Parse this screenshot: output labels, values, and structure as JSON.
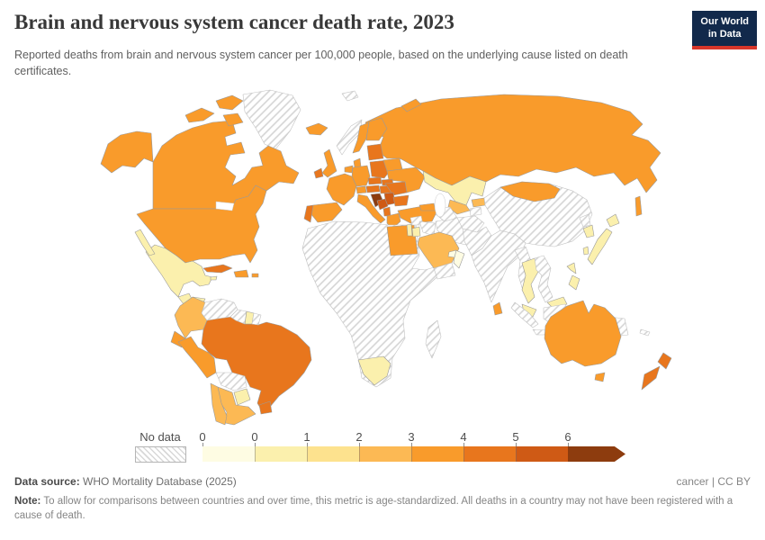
{
  "header": {
    "title": "Brain and nervous system cancer death rate, 2023",
    "subtitle": "Reported deaths from brain and nervous system cancer per 100,000 people, based on the underlying cause listed on death certificates.",
    "logo": {
      "line1": "Our World",
      "line2": "in Data",
      "bg": "#12294b",
      "accent": "#d8362a"
    }
  },
  "legend": {
    "no_data_label": "No data",
    "tick_labels": [
      "0",
      "0",
      "1",
      "2",
      "3",
      "4",
      "5",
      "6"
    ],
    "buckets": [
      {
        "range": "0-0.5",
        "color": "#fefce3"
      },
      {
        "range": "0.5-1",
        "color": "#fbf0ad"
      },
      {
        "range": "1-2",
        "color": "#fde28e"
      },
      {
        "range": "2-3",
        "color": "#fcb954"
      },
      {
        "range": "3-4",
        "color": "#f99b2b"
      },
      {
        "range": "4-5",
        "color": "#e8761d"
      },
      {
        "range": "5-6",
        "color": "#cf5a15"
      },
      {
        "range": "6+",
        "color": "#8d3c0e"
      }
    ]
  },
  "footer": {
    "source_label": "Data source:",
    "source_value": " WHO Mortality Database (2025)",
    "rights": "cancer | CC BY",
    "note_label": "Note:",
    "note_text": " To allow for comparisons between countries and over time, this metric is age-standardized. All deaths in a country may not have been registered with a cause of death."
  },
  "chart_data": {
    "type": "choropleth",
    "title": "Brain and nervous system cancer death rate, 2023",
    "unit": "deaths per 100,000 people (age-standardized)",
    "legend_ticks": [
      0,
      0.5,
      1,
      2,
      3,
      4,
      5,
      6
    ],
    "no_data_style": "gray diagonal hatching",
    "countries": {
      "Canada": "3-4",
      "United States": "3-4",
      "Greenland": "No data",
      "Mexico": "0.5-1",
      "Guatemala": "0.5-1",
      "Honduras": "0.5-1",
      "Nicaragua": "0.5-1",
      "Costa Rica": "0.5-1",
      "Panama": "2-3",
      "Cuba": "4-5",
      "Jamaica": "0.5-1",
      "Dominican Republic": "3-4",
      "Puerto Rico": "3-4",
      "Colombia": "2-3",
      "Venezuela": "No data",
      "Guyana": "No data",
      "Suriname": "0.5-1",
      "French Guiana": "No data",
      "Ecuador": "3-4",
      "Peru": "3-4",
      "Brazil": "4-5",
      "Bolivia": "No data",
      "Paraguay": "0.5-1",
      "Uruguay": "4-5",
      "Argentina": "2-3",
      "Chile": "2-3",
      "Iceland": "3-4",
      "Ireland": "4-5",
      "United Kingdom": "3-4",
      "Norway": "No data",
      "Sweden": "3-4",
      "Finland": "3-4",
      "Denmark": "3-4",
      "Baltic states": "4-5",
      "Germany": "3-4",
      "Netherlands": "3-4",
      "France": "3-4",
      "Spain": "3-4",
      "Portugal": "4-5",
      "Italy": "3-4",
      "Switzerland": "3-4",
      "Austria": "4-5",
      "Czechia": "4-5",
      "Slovakia": "4-5",
      "Poland": "4-5",
      "Hungary": "4-5",
      "Croatia": "6+",
      "Bosnia and Herzegovina": "5-6",
      "Serbia": "5-6",
      "Albania": "4-5",
      "Greece": "3-4",
      "Romania": "4-5",
      "Bulgaria": "4-5",
      "Ukraine": "3-4",
      "Belarus": "3-4",
      "Russia": "3-4",
      "Turkey": "3-4",
      "Caucasus": "3-4",
      "Kazakhstan": "0.5-1",
      "Uzbekistan": "2-3",
      "Kyrgyzstan": "2-3",
      "Tajikistan": "No data",
      "Turkmenistan": "No data",
      "Mongolia": "3-4",
      "China": "No data",
      "India": "No data",
      "Pakistan": "No data",
      "Afghanistan": "No data",
      "Iran": "No data",
      "Iraq": "No data",
      "Syria": "No data",
      "Israel": "0.5-1",
      "Jordan": "0.5-1",
      "Saudi Arabia": "2-3",
      "Yemen": "No data",
      "Oman": "0-0.5",
      "United Arab Emirates": "0-0.5",
      "Egypt": "3-4",
      "Sri Lanka": "3-4",
      "Myanmar": "No data",
      "Thailand": "0.5-1",
      "Vietnam": "No data",
      "Malaysia": "0.5-1",
      "Malaysia (Borneo)": "0.5-1",
      "Indonesia": "No data",
      "Philippines": "0.5-1",
      "Japan": "0.5-1",
      "South Korea": "0.5-1",
      "North Korea": "No data",
      "Taiwan": "0.5-1",
      "Africa (other)": "No data",
      "South Africa": "0.5-1",
      "Madagascar": "No data",
      "Australia": "3-4",
      "Tasmania": "3-4",
      "New Zealand (North Island)": "4-5",
      "New Zealand (South Island)": "4-5",
      "Papua New Guinea": "No data",
      "New Caledonia": "No data",
      "Svalbard": "No data",
      "Sakhalin": "3-4"
    }
  }
}
